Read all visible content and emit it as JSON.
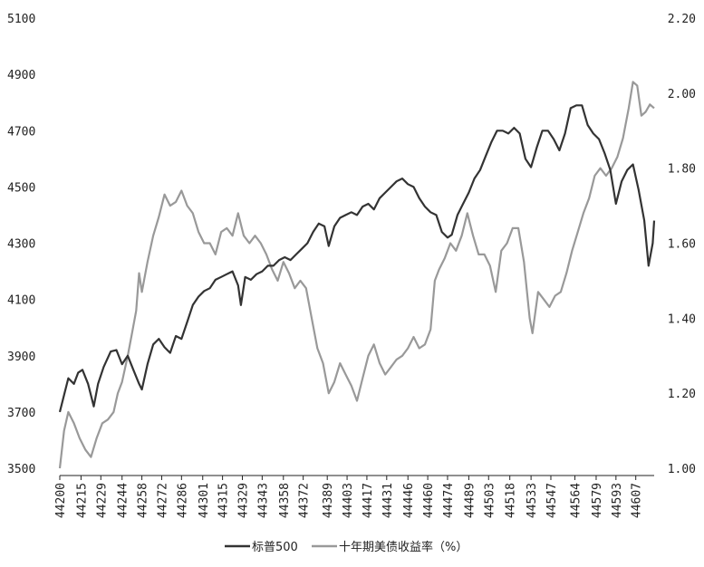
{
  "chart_data": {
    "type": "line",
    "title": "",
    "xlabel": "",
    "ylabel": "",
    "x_ticks": [
      44200,
      44215,
      44229,
      44244,
      44258,
      44272,
      44286,
      44301,
      44315,
      44329,
      44343,
      44358,
      44372,
      44389,
      44403,
      44417,
      44431,
      44446,
      44460,
      44474,
      44489,
      44503,
      44518,
      44533,
      44547,
      44564,
      44579,
      44593,
      44607
    ],
    "xlim": [
      44200,
      44620
    ],
    "y_left": {
      "ticks": [
        "3500",
        "3700",
        "3900",
        "4100",
        "4300",
        "4500",
        "4700",
        "4900",
        "5100"
      ],
      "lim": [
        3500,
        5100
      ]
    },
    "y_right": {
      "ticks": [
        "1.00",
        "1.20",
        "1.40",
        "1.60",
        "1.80",
        "2.00",
        "2.20"
      ],
      "lim": [
        1.0,
        2.2
      ]
    },
    "grid": false,
    "legend_position": "bottom",
    "series": [
      {
        "name": "标普500",
        "axis": "left",
        "color": "#333333",
        "points": [
          [
            44200,
            3700
          ],
          [
            44203,
            3760
          ],
          [
            44206,
            3820
          ],
          [
            44210,
            3800
          ],
          [
            44213,
            3840
          ],
          [
            44216,
            3850
          ],
          [
            44220,
            3800
          ],
          [
            44224,
            3720
          ],
          [
            44227,
            3800
          ],
          [
            44231,
            3860
          ],
          [
            44236,
            3915
          ],
          [
            44240,
            3920
          ],
          [
            44244,
            3870
          ],
          [
            44248,
            3900
          ],
          [
            44252,
            3850
          ],
          [
            44256,
            3800
          ],
          [
            44258,
            3780
          ],
          [
            44262,
            3870
          ],
          [
            44266,
            3940
          ],
          [
            44270,
            3960
          ],
          [
            44274,
            3930
          ],
          [
            44278,
            3910
          ],
          [
            44282,
            3970
          ],
          [
            44286,
            3960
          ],
          [
            44290,
            4020
          ],
          [
            44294,
            4080
          ],
          [
            44298,
            4110
          ],
          [
            44302,
            4130
          ],
          [
            44306,
            4140
          ],
          [
            44310,
            4170
          ],
          [
            44314,
            4180
          ],
          [
            44318,
            4190
          ],
          [
            44322,
            4200
          ],
          [
            44326,
            4150
          ],
          [
            44328,
            4080
          ],
          [
            44331,
            4180
          ],
          [
            44335,
            4170
          ],
          [
            44339,
            4190
          ],
          [
            44343,
            4200
          ],
          [
            44347,
            4220
          ],
          [
            44351,
            4220
          ],
          [
            44355,
            4240
          ],
          [
            44359,
            4250
          ],
          [
            44363,
            4240
          ],
          [
            44367,
            4260
          ],
          [
            44371,
            4280
          ],
          [
            44375,
            4300
          ],
          [
            44379,
            4340
          ],
          [
            44383,
            4370
          ],
          [
            44387,
            4360
          ],
          [
            44390,
            4290
          ],
          [
            44394,
            4360
          ],
          [
            44398,
            4390
          ],
          [
            44402,
            4400
          ],
          [
            44406,
            4410
          ],
          [
            44410,
            4400
          ],
          [
            44414,
            4430
          ],
          [
            44418,
            4440
          ],
          [
            44422,
            4420
          ],
          [
            44426,
            4460
          ],
          [
            44430,
            4480
          ],
          [
            44434,
            4500
          ],
          [
            44438,
            4520
          ],
          [
            44442,
            4530
          ],
          [
            44446,
            4510
          ],
          [
            44450,
            4500
          ],
          [
            44454,
            4460
          ],
          [
            44458,
            4430
          ],
          [
            44462,
            4410
          ],
          [
            44466,
            4400
          ],
          [
            44470,
            4340
          ],
          [
            44474,
            4320
          ],
          [
            44477,
            4330
          ],
          [
            44481,
            4400
          ],
          [
            44485,
            4440
          ],
          [
            44489,
            4480
          ],
          [
            44493,
            4530
          ],
          [
            44497,
            4560
          ],
          [
            44501,
            4610
          ],
          [
            44505,
            4660
          ],
          [
            44509,
            4700
          ],
          [
            44513,
            4700
          ],
          [
            44517,
            4690
          ],
          [
            44521,
            4710
          ],
          [
            44525,
            4690
          ],
          [
            44529,
            4600
          ],
          [
            44533,
            4570
          ],
          [
            44537,
            4640
          ],
          [
            44541,
            4700
          ],
          [
            44545,
            4700
          ],
          [
            44549,
            4670
          ],
          [
            44553,
            4630
          ],
          [
            44557,
            4690
          ],
          [
            44561,
            4780
          ],
          [
            44565,
            4790
          ],
          [
            44569,
            4790
          ],
          [
            44573,
            4720
          ],
          [
            44577,
            4690
          ],
          [
            44581,
            4670
          ],
          [
            44585,
            4620
          ],
          [
            44589,
            4560
          ],
          [
            44593,
            4440
          ],
          [
            44597,
            4520
          ],
          [
            44601,
            4560
          ],
          [
            44605,
            4580
          ],
          [
            44609,
            4490
          ],
          [
            44613,
            4380
          ],
          [
            44616,
            4220
          ],
          [
            44619,
            4300
          ],
          [
            44620,
            4380
          ]
        ]
      },
      {
        "name": "十年期美债收益率（%）",
        "axis": "right",
        "color": "#999999",
        "points": [
          [
            44200,
            1.0
          ],
          [
            44203,
            1.1
          ],
          [
            44206,
            1.15
          ],
          [
            44210,
            1.12
          ],
          [
            44214,
            1.08
          ],
          [
            44218,
            1.05
          ],
          [
            44222,
            1.03
          ],
          [
            44226,
            1.08
          ],
          [
            44230,
            1.12
          ],
          [
            44234,
            1.13
          ],
          [
            44238,
            1.15
          ],
          [
            44241,
            1.2
          ],
          [
            44244,
            1.23
          ],
          [
            44248,
            1.3
          ],
          [
            44251,
            1.36
          ],
          [
            44254,
            1.42
          ],
          [
            44256,
            1.52
          ],
          [
            44258,
            1.47
          ],
          [
            44262,
            1.55
          ],
          [
            44266,
            1.62
          ],
          [
            44270,
            1.67
          ],
          [
            44274,
            1.73
          ],
          [
            44278,
            1.7
          ],
          [
            44282,
            1.71
          ],
          [
            44286,
            1.74
          ],
          [
            44290,
            1.7
          ],
          [
            44294,
            1.68
          ],
          [
            44298,
            1.63
          ],
          [
            44302,
            1.6
          ],
          [
            44306,
            1.6
          ],
          [
            44310,
            1.57
          ],
          [
            44314,
            1.63
          ],
          [
            44318,
            1.64
          ],
          [
            44322,
            1.62
          ],
          [
            44326,
            1.68
          ],
          [
            44330,
            1.62
          ],
          [
            44334,
            1.6
          ],
          [
            44338,
            1.62
          ],
          [
            44342,
            1.6
          ],
          [
            44346,
            1.57
          ],
          [
            44350,
            1.53
          ],
          [
            44354,
            1.5
          ],
          [
            44358,
            1.55
          ],
          [
            44362,
            1.52
          ],
          [
            44366,
            1.48
          ],
          [
            44370,
            1.5
          ],
          [
            44374,
            1.48
          ],
          [
            44378,
            1.4
          ],
          [
            44382,
            1.32
          ],
          [
            44386,
            1.28
          ],
          [
            44390,
            1.2
          ],
          [
            44394,
            1.23
          ],
          [
            44398,
            1.28
          ],
          [
            44402,
            1.25
          ],
          [
            44406,
            1.22
          ],
          [
            44410,
            1.18
          ],
          [
            44414,
            1.24
          ],
          [
            44418,
            1.3
          ],
          [
            44422,
            1.33
          ],
          [
            44426,
            1.28
          ],
          [
            44430,
            1.25
          ],
          [
            44434,
            1.27
          ],
          [
            44438,
            1.29
          ],
          [
            44442,
            1.3
          ],
          [
            44446,
            1.32
          ],
          [
            44450,
            1.35
          ],
          [
            44454,
            1.32
          ],
          [
            44458,
            1.33
          ],
          [
            44462,
            1.37
          ],
          [
            44465,
            1.5
          ],
          [
            44468,
            1.53
          ],
          [
            44472,
            1.56
          ],
          [
            44476,
            1.6
          ],
          [
            44480,
            1.58
          ],
          [
            44484,
            1.62
          ],
          [
            44488,
            1.68
          ],
          [
            44492,
            1.62
          ],
          [
            44496,
            1.57
          ],
          [
            44500,
            1.57
          ],
          [
            44504,
            1.54
          ],
          [
            44508,
            1.47
          ],
          [
            44512,
            1.58
          ],
          [
            44516,
            1.6
          ],
          [
            44520,
            1.64
          ],
          [
            44524,
            1.64
          ],
          [
            44528,
            1.55
          ],
          [
            44532,
            1.4
          ],
          [
            44534,
            1.36
          ],
          [
            44538,
            1.47
          ],
          [
            44542,
            1.45
          ],
          [
            44546,
            1.43
          ],
          [
            44550,
            1.46
          ],
          [
            44554,
            1.47
          ],
          [
            44558,
            1.52
          ],
          [
            44562,
            1.58
          ],
          [
            44566,
            1.63
          ],
          [
            44570,
            1.68
          ],
          [
            44574,
            1.72
          ],
          [
            44578,
            1.78
          ],
          [
            44582,
            1.8
          ],
          [
            44586,
            1.78
          ],
          [
            44590,
            1.8
          ],
          [
            44594,
            1.83
          ],
          [
            44598,
            1.88
          ],
          [
            44602,
            1.96
          ],
          [
            44605,
            2.03
          ],
          [
            44608,
            2.02
          ],
          [
            44611,
            1.94
          ],
          [
            44614,
            1.95
          ],
          [
            44617,
            1.97
          ],
          [
            44620,
            1.96
          ]
        ]
      }
    ]
  }
}
